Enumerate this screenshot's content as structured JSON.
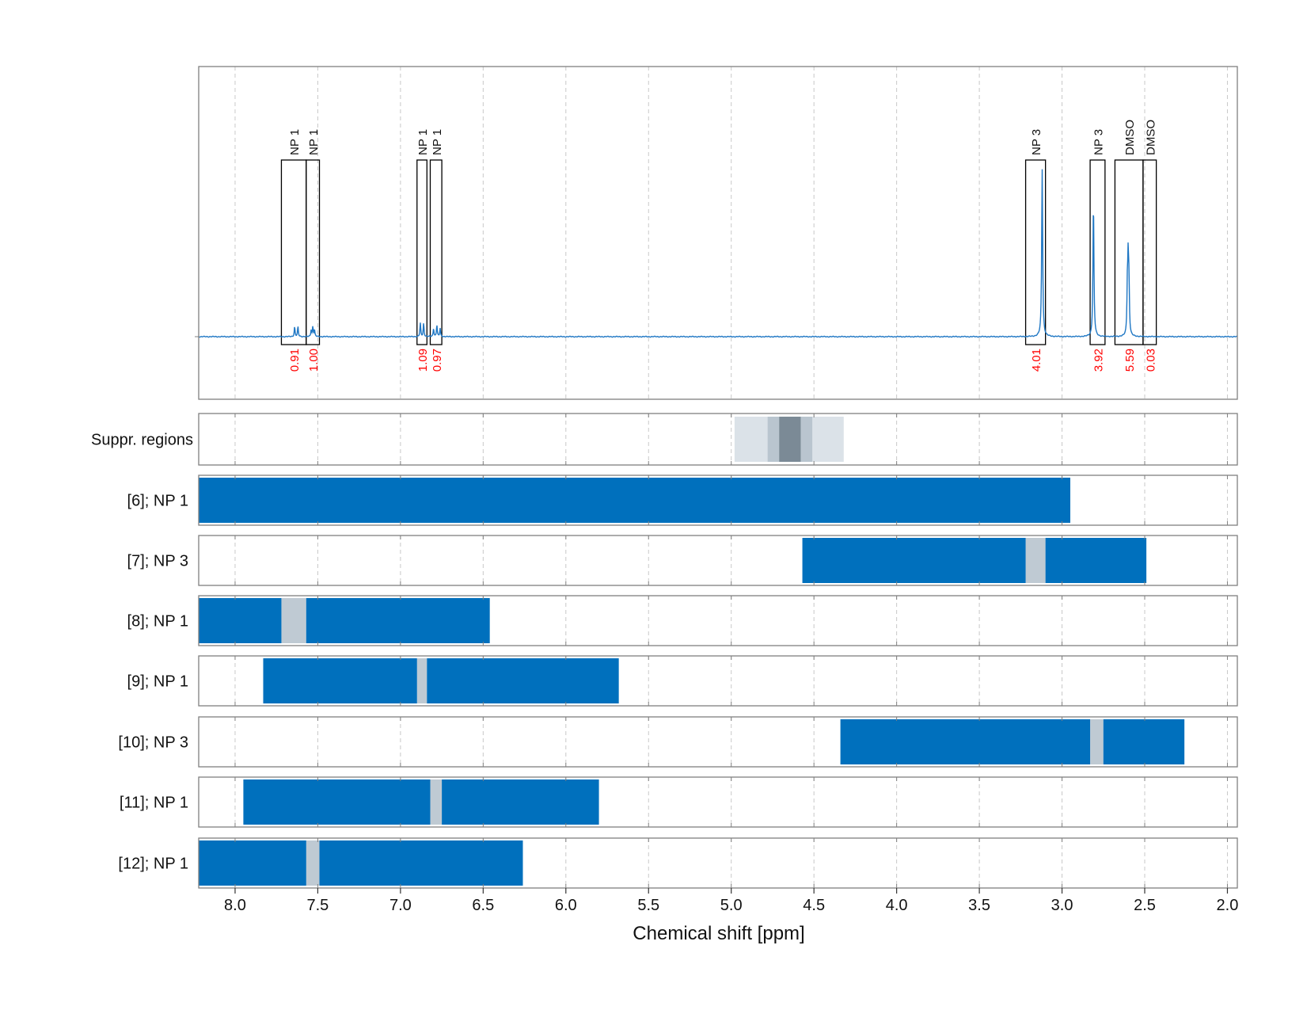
{
  "chart_data": {
    "type": "nmr-spectrum-with-range-bars",
    "xlabel": "Chemical shift [ppm]",
    "xlim": [
      8.22,
      1.94
    ],
    "xticks": [
      8.0,
      7.5,
      7.0,
      6.5,
      6.0,
      5.5,
      5.0,
      4.5,
      4.0,
      3.5,
      3.0,
      2.5,
      2.0
    ],
    "xtick_labels": [
      "8.0",
      "7.5",
      "7.0",
      "6.5",
      "6.0",
      "5.5",
      "5.0",
      "4.5",
      "4.0",
      "3.5",
      "3.0",
      "2.5",
      "2.0"
    ],
    "grid": "vertical dashed",
    "colors": {
      "spectrum": "#1f77c4",
      "bar": "#0070bd",
      "gap": "#bfcad3",
      "integral_label": "#ff0000",
      "box": "#000000"
    },
    "spectrum": {
      "baseline": 0,
      "peaks": [
        {
          "ppm": 7.64,
          "height": 0.06
        },
        {
          "ppm": 7.62,
          "height": 0.06
        },
        {
          "ppm": 7.54,
          "height": 0.04
        },
        {
          "ppm": 7.53,
          "height": 0.06
        },
        {
          "ppm": 7.52,
          "height": 0.04
        },
        {
          "ppm": 6.88,
          "height": 0.08
        },
        {
          "ppm": 6.86,
          "height": 0.08
        },
        {
          "ppm": 6.8,
          "height": 0.05
        },
        {
          "ppm": 6.78,
          "height": 0.07
        },
        {
          "ppm": 6.76,
          "height": 0.05
        },
        {
          "ppm": 3.12,
          "height": 1.0
        },
        {
          "ppm": 2.81,
          "height": 0.8
        },
        {
          "ppm": 2.6,
          "height": 0.45
        },
        {
          "ppm": 2.605,
          "height": 0.25
        },
        {
          "ppm": 2.595,
          "height": 0.25
        }
      ]
    },
    "integration_regions": [
      {
        "label": "NP 1",
        "from": 7.72,
        "to": 7.57,
        "integral": "0.91"
      },
      {
        "label": "NP 1",
        "from": 7.57,
        "to": 7.49,
        "integral": "1.00"
      },
      {
        "label": "NP 1",
        "from": 6.9,
        "to": 6.84,
        "integral": "1.09"
      },
      {
        "label": "NP 1",
        "from": 6.82,
        "to": 6.75,
        "integral": "0.97"
      },
      {
        "label": "NP 3",
        "from": 3.22,
        "to": 3.1,
        "integral": "4.01"
      },
      {
        "label": "NP 3",
        "from": 2.83,
        "to": 2.74,
        "integral": "3.92"
      },
      {
        "label": "DMSO",
        "from": 2.68,
        "to": 2.51,
        "integral": "5.59"
      },
      {
        "label": "DMSO",
        "from": 2.51,
        "to": 2.43,
        "integral": "0.03"
      }
    ],
    "suppression": {
      "label": "Suppr. regions",
      "bands": [
        {
          "from": 4.98,
          "to": 4.32,
          "level": "light"
        },
        {
          "from": 4.78,
          "to": 4.51,
          "level": "medium"
        },
        {
          "from": 4.71,
          "to": 4.58,
          "level": "dark"
        }
      ]
    },
    "range_rows": [
      {
        "label": "[6]; NP 1",
        "segments": [
          [
            8.22,
            2.95
          ]
        ],
        "gaps": []
      },
      {
        "label": "[7]; NP 3",
        "segments": [
          [
            4.57,
            3.22
          ],
          [
            3.1,
            2.49
          ]
        ],
        "gaps": [
          [
            3.22,
            3.1
          ]
        ]
      },
      {
        "label": "[8]; NP 1",
        "segments": [
          [
            8.22,
            7.72
          ],
          [
            7.57,
            6.46
          ]
        ],
        "gaps": [
          [
            7.72,
            7.57
          ]
        ]
      },
      {
        "label": "[9]; NP 1",
        "segments": [
          [
            7.83,
            6.9
          ],
          [
            6.84,
            5.68
          ]
        ],
        "gaps": [
          [
            6.9,
            6.84
          ]
        ]
      },
      {
        "label": "[10]; NP 3",
        "segments": [
          [
            4.34,
            2.83
          ],
          [
            2.75,
            2.26
          ]
        ],
        "gaps": [
          [
            2.83,
            2.75
          ]
        ]
      },
      {
        "label": "[11]; NP 1",
        "segments": [
          [
            7.95,
            6.82
          ],
          [
            6.75,
            5.8
          ]
        ],
        "gaps": [
          [
            6.82,
            6.75
          ]
        ]
      },
      {
        "label": "[12]; NP 1",
        "segments": [
          [
            8.22,
            7.57
          ],
          [
            7.49,
            6.26
          ]
        ],
        "gaps": [
          [
            7.57,
            7.49
          ]
        ]
      }
    ]
  }
}
